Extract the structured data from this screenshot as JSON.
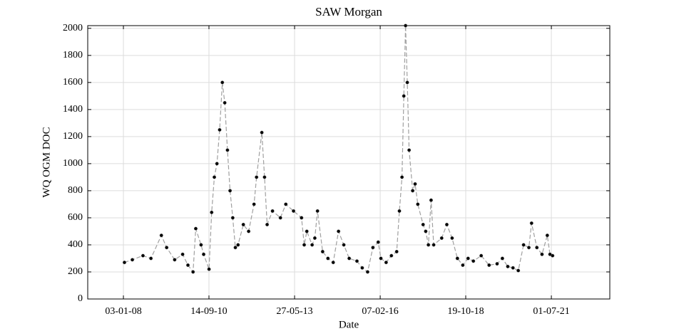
{
  "chart_data": {
    "type": "line",
    "title": "SAW Morgan",
    "x_label": "Date",
    "y_label": "WQ OGM DOC",
    "xlim": [
      "2006-11-18",
      "2023-05-05"
    ],
    "xticks": [
      {
        "value": "2008-01-03",
        "label": "03-01-08"
      },
      {
        "value": "2010-09-14",
        "label": "14-09-10"
      },
      {
        "value": "2013-05-27",
        "label": "27-05-13"
      },
      {
        "value": "2016-02-07",
        "label": "07-02-16"
      },
      {
        "value": "2018-10-19",
        "label": "19-10-18"
      },
      {
        "value": "2021-07-01",
        "label": "01-07-21"
      }
    ],
    "ylim": [
      0,
      2020
    ],
    "yticks": [
      0,
      200,
      400,
      600,
      800,
      1000,
      1200,
      1400,
      1600,
      1800,
      2000
    ],
    "grid": true,
    "x": [
      "2008-01-15",
      "2008-04-15",
      "2008-08-15",
      "2008-11-15",
      "2009-03-15",
      "2009-05-15",
      "2009-08-15",
      "2009-11-15",
      "2010-01-15",
      "2010-03-15",
      "2010-04-15",
      "2010-06-15",
      "2010-07-15",
      "2010-09-15",
      "2010-10-15",
      "2010-11-15",
      "2010-12-15",
      "2011-01-15",
      "2011-02-15",
      "2011-03-15",
      "2011-04-15",
      "2011-05-15",
      "2011-06-15",
      "2011-07-15",
      "2011-08-15",
      "2011-10-15",
      "2011-12-15",
      "2012-02-15",
      "2012-03-15",
      "2012-05-15",
      "2012-06-15",
      "2012-07-15",
      "2012-09-15",
      "2012-12-15",
      "2013-02-15",
      "2013-05-15",
      "2013-08-15",
      "2013-09-15",
      "2013-10-15",
      "2013-12-15",
      "2014-01-15",
      "2014-02-15",
      "2014-04-15",
      "2014-06-15",
      "2014-08-15",
      "2014-10-15",
      "2014-12-15",
      "2015-02-15",
      "2015-05-15",
      "2015-07-15",
      "2015-09-15",
      "2015-11-15",
      "2016-01-15",
      "2016-02-15",
      "2016-04-15",
      "2016-06-15",
      "2016-08-15",
      "2016-09-15",
      "2016-10-15",
      "2016-11-05",
      "2016-11-25",
      "2016-12-15",
      "2017-01-05",
      "2017-02-15",
      "2017-03-15",
      "2017-04-15",
      "2017-06-15",
      "2017-07-15",
      "2017-08-15",
      "2017-09-15",
      "2017-10-15",
      "2018-01-15",
      "2018-03-15",
      "2018-05-15",
      "2018-07-15",
      "2018-09-15",
      "2018-11-15",
      "2019-01-15",
      "2019-04-15",
      "2019-07-15",
      "2019-10-15",
      "2019-12-15",
      "2020-02-15",
      "2020-04-15",
      "2020-06-15",
      "2020-08-15",
      "2020-10-15",
      "2020-11-15",
      "2021-01-15",
      "2021-03-15",
      "2021-05-15",
      "2021-06-15",
      "2021-07-15"
    ],
    "series": [
      {
        "name": "WQ OGM DOC",
        "color": "#000000",
        "line_color": "#a0a0a0",
        "values": [
          270,
          290,
          320,
          300,
          470,
          380,
          290,
          330,
          250,
          200,
          520,
          400,
          330,
          220,
          640,
          900,
          1000,
          1250,
          1600,
          1450,
          1100,
          800,
          600,
          380,
          400,
          550,
          500,
          700,
          900,
          1230,
          900,
          550,
          650,
          600,
          700,
          650,
          600,
          400,
          500,
          400,
          450,
          650,
          350,
          300,
          270,
          500,
          400,
          300,
          280,
          230,
          200,
          380,
          420,
          300,
          270,
          320,
          350,
          650,
          900,
          1500,
          2020,
          1600,
          1100,
          800,
          850,
          700,
          550,
          500,
          400,
          730,
          400,
          450,
          550,
          450,
          300,
          250,
          300,
          280,
          320,
          250,
          260,
          300,
          240,
          230,
          210,
          400,
          380,
          560,
          380,
          330,
          470,
          330,
          320
        ]
      }
    ]
  }
}
